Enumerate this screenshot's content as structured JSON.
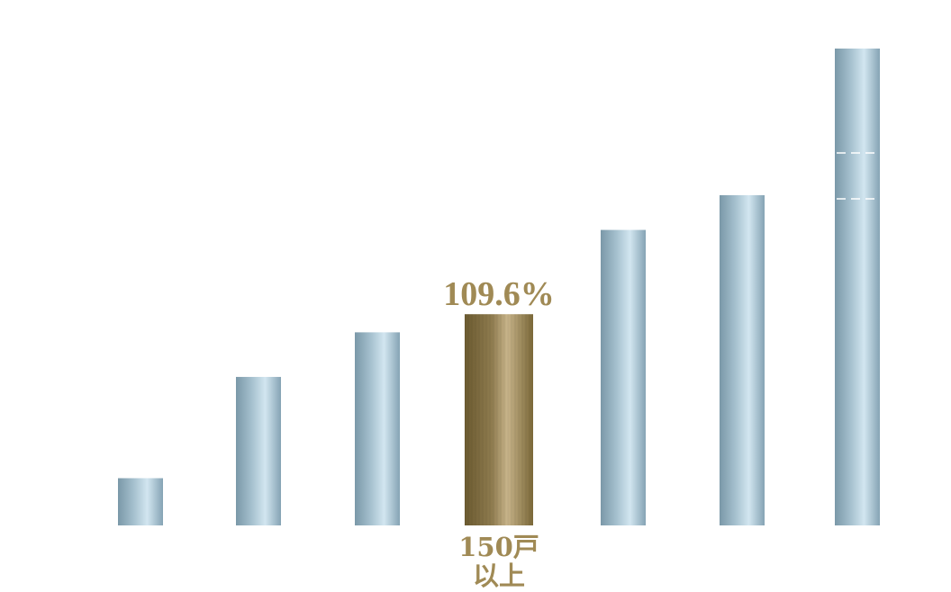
{
  "chart_data": {
    "type": "bar",
    "title": "",
    "xlabel": "",
    "ylabel": "",
    "categories": [
      "",
      "",
      "",
      "150戸\n以上",
      "",
      "",
      ""
    ],
    "values": [
      12.5,
      39.3,
      51.1,
      55.9,
      78.2,
      87.4,
      126.2
    ],
    "highlight_index": 3,
    "highlight_label": "109.6%",
    "axis_break_on_last_bar": true,
    "ylim": [
      0,
      130
    ],
    "grid": false,
    "legend": "none"
  },
  "colors": {
    "bar_dark": "#7a98a8",
    "bar_mid": "#a8c4d2",
    "bar_light": "#d0e4ee",
    "highlight_dark": "#6b5a30",
    "highlight_mid": "#8c7a4e",
    "highlight_light": "#c9b58c",
    "text_gold": "#a08a55",
    "background": "#ffffff"
  }
}
